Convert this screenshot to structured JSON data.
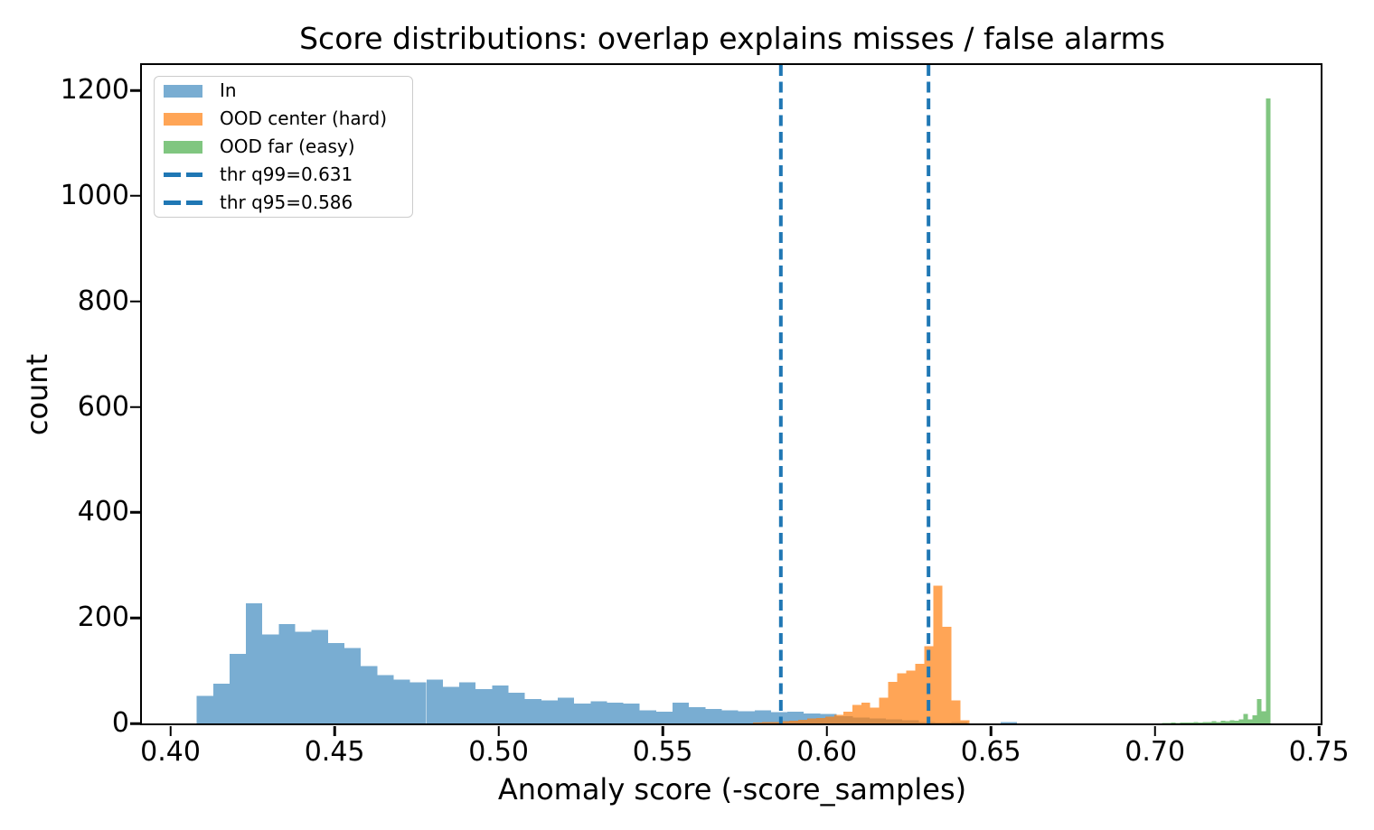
{
  "chart_data": {
    "type": "bar",
    "subtype": "overlaid-histograms",
    "title": "Score distributions: overlap explains misses / false alarms",
    "xlabel": "Anomaly score (-score_samples)",
    "ylabel": "count",
    "xlim": [
      0.3913,
      0.7505
    ],
    "ylim": [
      0,
      1248
    ],
    "grid": false,
    "xticks": {
      "values": [
        0.4,
        0.45,
        0.5,
        0.55,
        0.6,
        0.65,
        0.7,
        0.75
      ],
      "labels": [
        "0.40",
        "0.45",
        "0.50",
        "0.55",
        "0.60",
        "0.65",
        "0.70",
        "0.75"
      ]
    },
    "yticks": {
      "values": [
        0,
        200,
        400,
        600,
        800,
        1000,
        1200
      ],
      "labels": [
        "0",
        "200",
        "400",
        "600",
        "800",
        "1000",
        "1200"
      ]
    },
    "series": [
      {
        "id": "in",
        "name": "In",
        "color": "#1f77b4",
        "alpha": 0.6,
        "bin_start": 0.408,
        "bin_width": 0.005,
        "counts": [
          52,
          75,
          132,
          228,
          169,
          188,
          174,
          177,
          152,
          143,
          109,
          92,
          83,
          78,
          83,
          69,
          78,
          65,
          72,
          58,
          46,
          44,
          49,
          38,
          42,
          39,
          38,
          25,
          22,
          39,
          31,
          27,
          25,
          23,
          25,
          21,
          22,
          19,
          18,
          14,
          11,
          9,
          8,
          6,
          3,
          2,
          3,
          0,
          0,
          3
        ]
      },
      {
        "id": "ood-center",
        "name": "OOD center (hard)",
        "color": "#ff7f0e",
        "alpha": 0.7,
        "bin_start": 0.5775,
        "bin_width": 0.00275,
        "counts": [
          2,
          3,
          3,
          4,
          5,
          7,
          9,
          10,
          13,
          16,
          22,
          35,
          39,
          30,
          49,
          79,
          95,
          100,
          113,
          146,
          261,
          183,
          44,
          6
        ]
      },
      {
        "id": "ood-far",
        "name": "OOD far (easy)",
        "color": "#2ca02c",
        "alpha": 0.6,
        "bin_start": 0.7021,
        "bin_width": 0.00138,
        "counts": [
          1,
          1,
          2,
          1,
          2,
          2,
          2,
          3,
          2,
          3,
          3,
          4,
          3,
          5,
          4,
          6,
          5,
          8,
          18,
          8,
          15,
          46,
          23,
          1185
        ]
      }
    ],
    "thresholds": [
      {
        "id": "thr-q99",
        "label": "thr q99=0.631",
        "value": 0.631,
        "color": "#1f77b4",
        "style": "dashed"
      },
      {
        "id": "thr-q95",
        "label": "thr q95=0.586",
        "value": 0.586,
        "color": "#1f77b4",
        "style": "dashed"
      }
    ],
    "legend": {
      "position": "upper-left",
      "entries": [
        {
          "type": "patch",
          "label": "In",
          "color": "#1f77b4",
          "alpha": 0.6
        },
        {
          "type": "patch",
          "label": "OOD center (hard)",
          "color": "#ff7f0e",
          "alpha": 0.7
        },
        {
          "type": "patch",
          "label": "OOD far (easy)",
          "color": "#2ca02c",
          "alpha": 0.6
        },
        {
          "type": "dashed-line",
          "label": "thr q99=0.631",
          "color": "#1f77b4"
        },
        {
          "type": "dashed-line",
          "label": "thr q95=0.586",
          "color": "#1f77b4"
        }
      ]
    },
    "colors": {
      "axes": "#000000",
      "legend_border": "#cccccc",
      "background": "#ffffff"
    }
  }
}
